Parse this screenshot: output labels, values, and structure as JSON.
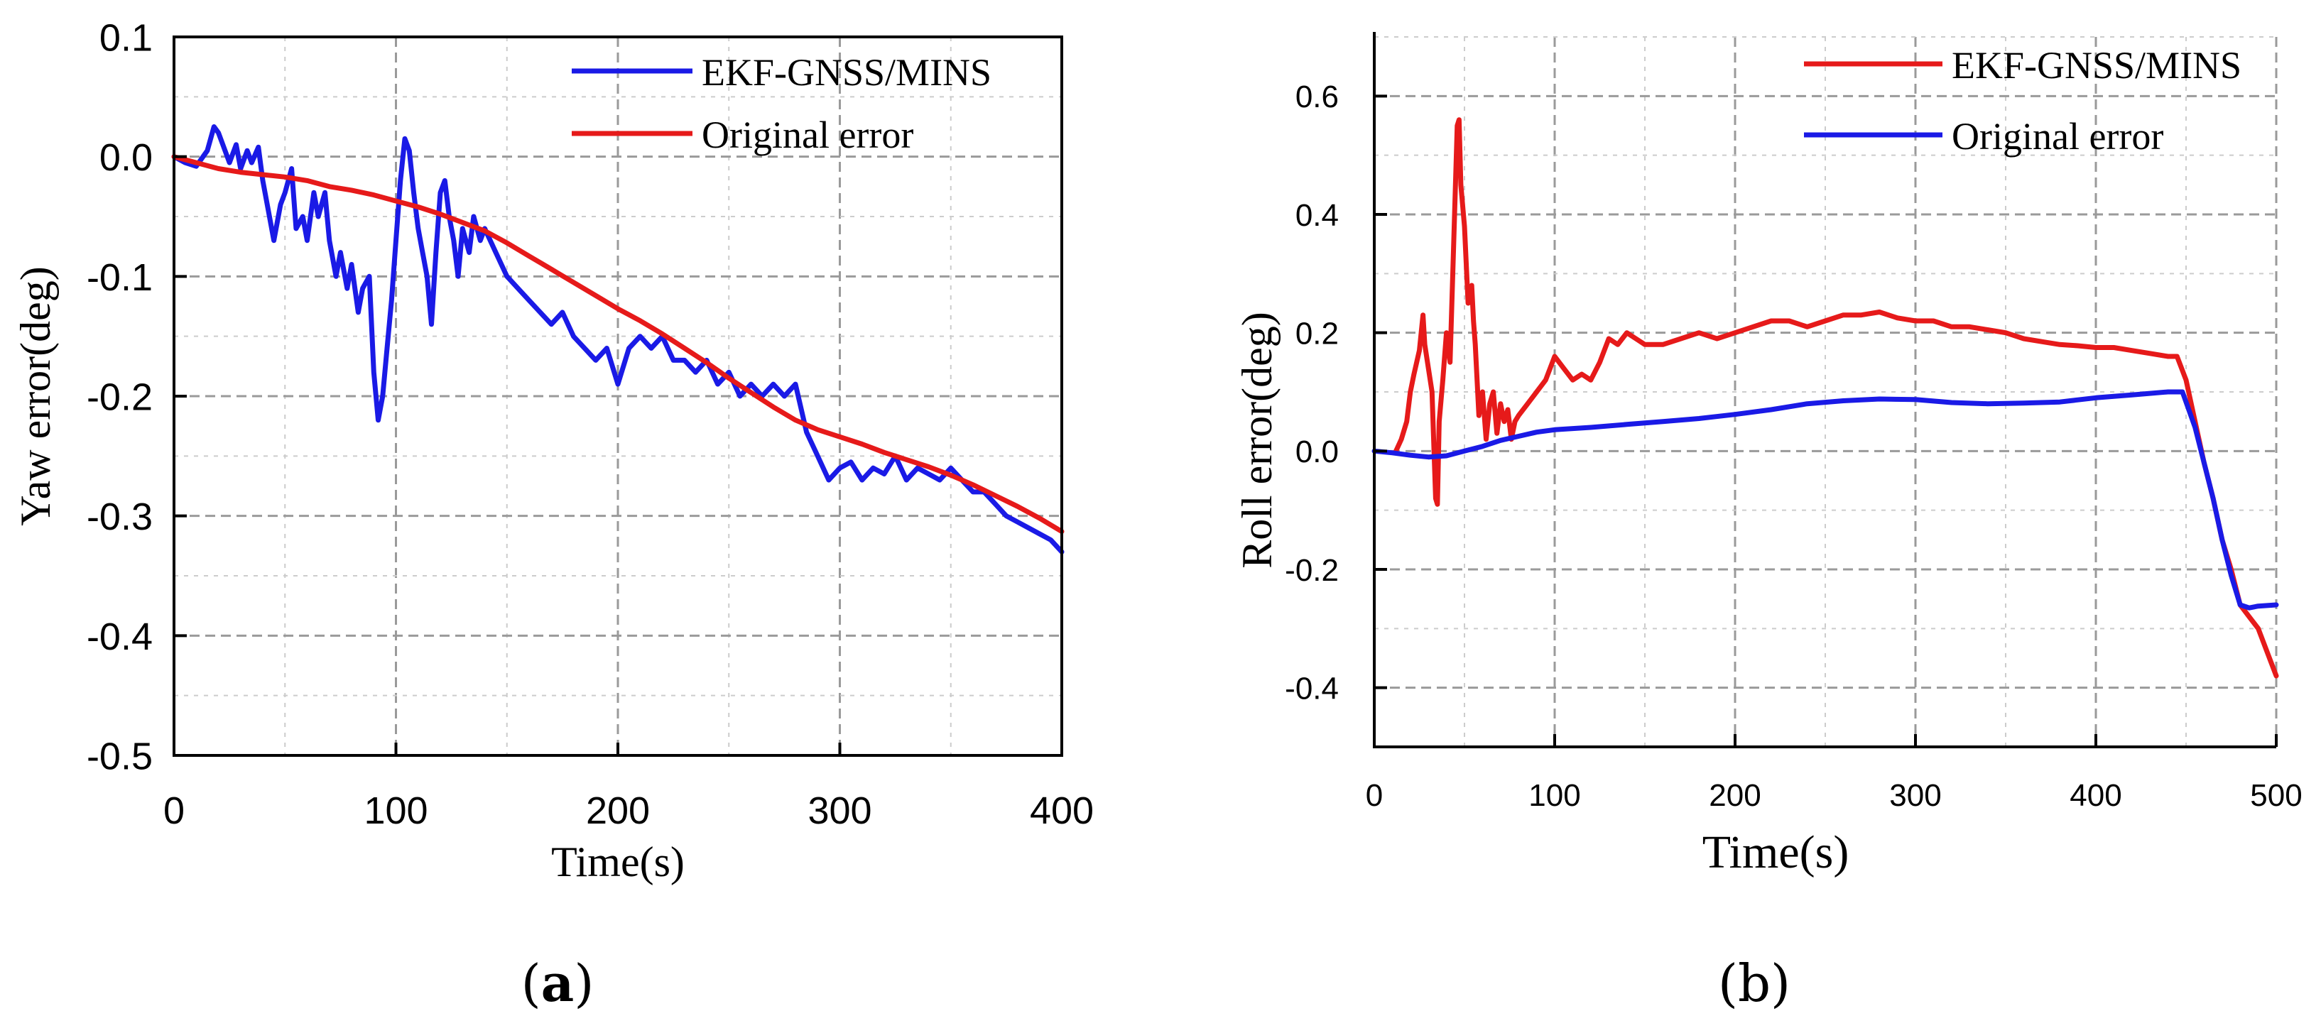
{
  "chart_data": [
    {
      "id": "a",
      "type": "line",
      "caption": "(a)",
      "caption_letter": "a",
      "xlabel": "Time(s)",
      "ylabel": "Yaw error(deg)",
      "xlim": [
        0,
        400
      ],
      "ylim": [
        -0.5,
        0.1
      ],
      "xticks": [
        0,
        100,
        200,
        300,
        400
      ],
      "xtick_labels": [
        "0",
        "100",
        "200",
        "300",
        "400"
      ],
      "yticks": [
        -0.5,
        -0.4,
        -0.3,
        -0.2,
        -0.1,
        0.0,
        0.1
      ],
      "ytick_labels": [
        "-0.5",
        "-0.4",
        "-0.3",
        "-0.2",
        "-0.1",
        "0.0",
        "0.1"
      ],
      "grid": true,
      "legend_position": "top-right",
      "series": [
        {
          "name": "EKF-GNSS/MINS",
          "color": "#1a1ae6",
          "x": [
            0,
            5,
            10,
            15,
            18,
            20,
            22,
            25,
            28,
            30,
            33,
            35,
            38,
            40,
            43,
            45,
            48,
            50,
            53,
            55,
            58,
            60,
            63,
            65,
            68,
            70,
            73,
            75,
            78,
            80,
            83,
            85,
            88,
            90,
            92,
            94,
            96,
            98,
            100,
            102,
            104,
            106,
            108,
            110,
            112,
            114,
            116,
            118,
            120,
            122,
            124,
            126,
            128,
            130,
            133,
            135,
            138,
            140,
            145,
            150,
            155,
            160,
            165,
            170,
            175,
            180,
            185,
            190,
            195,
            200,
            205,
            210,
            215,
            220,
            225,
            230,
            235,
            240,
            245,
            250,
            255,
            260,
            265,
            270,
            275,
            280,
            285,
            290,
            295,
            300,
            305,
            310,
            315,
            320,
            325,
            330,
            335,
            340,
            345,
            350,
            355,
            360,
            365,
            370,
            375,
            380,
            385,
            390,
            395,
            400
          ],
          "y": [
            0.0,
            -0.005,
            -0.008,
            0.005,
            0.025,
            0.02,
            0.01,
            -0.005,
            0.01,
            -0.01,
            0.005,
            -0.005,
            0.008,
            -0.02,
            -0.05,
            -0.07,
            -0.04,
            -0.03,
            -0.01,
            -0.06,
            -0.05,
            -0.07,
            -0.03,
            -0.05,
            -0.03,
            -0.07,
            -0.1,
            -0.08,
            -0.11,
            -0.09,
            -0.13,
            -0.11,
            -0.1,
            -0.18,
            -0.22,
            -0.2,
            -0.16,
            -0.12,
            -0.07,
            -0.02,
            0.015,
            0.005,
            -0.03,
            -0.06,
            -0.08,
            -0.1,
            -0.14,
            -0.08,
            -0.03,
            -0.02,
            -0.05,
            -0.07,
            -0.1,
            -0.06,
            -0.08,
            -0.05,
            -0.07,
            -0.06,
            -0.08,
            -0.1,
            -0.11,
            -0.12,
            -0.13,
            -0.14,
            -0.13,
            -0.15,
            -0.16,
            -0.17,
            -0.16,
            -0.19,
            -0.16,
            -0.15,
            -0.16,
            -0.15,
            -0.17,
            -0.17,
            -0.18,
            -0.17,
            -0.19,
            -0.18,
            -0.2,
            -0.19,
            -0.2,
            -0.19,
            -0.2,
            -0.19,
            -0.23,
            -0.25,
            -0.27,
            -0.26,
            -0.255,
            -0.27,
            -0.26,
            -0.265,
            -0.25,
            -0.27,
            -0.26,
            -0.265,
            -0.27,
            -0.26,
            -0.27,
            -0.28,
            -0.28,
            -0.29,
            -0.3,
            -0.305,
            -0.31,
            -0.315,
            -0.32,
            -0.33
          ]
        },
        {
          "name": "Original error",
          "color": "#e61a1a",
          "x": [
            0,
            10,
            20,
            30,
            40,
            50,
            60,
            70,
            80,
            90,
            100,
            110,
            120,
            130,
            140,
            150,
            160,
            170,
            180,
            190,
            200,
            210,
            220,
            230,
            240,
            250,
            260,
            270,
            280,
            290,
            300,
            310,
            320,
            330,
            340,
            350,
            360,
            370,
            380,
            390,
            400
          ],
          "y": [
            0.0,
            -0.005,
            -0.01,
            -0.013,
            -0.015,
            -0.017,
            -0.02,
            -0.025,
            -0.028,
            -0.032,
            -0.037,
            -0.042,
            -0.048,
            -0.055,
            -0.062,
            -0.072,
            -0.083,
            -0.094,
            -0.105,
            -0.116,
            -0.127,
            -0.137,
            -0.148,
            -0.16,
            -0.172,
            -0.185,
            -0.197,
            -0.209,
            -0.22,
            -0.228,
            -0.234,
            -0.24,
            -0.247,
            -0.253,
            -0.259,
            -0.266,
            -0.274,
            -0.283,
            -0.292,
            -0.302,
            -0.313
          ]
        }
      ]
    },
    {
      "id": "b",
      "type": "line",
      "caption": "(b)",
      "caption_letter": "b",
      "xlabel": "Time(s)",
      "ylabel": "Roll error(deg)",
      "xlim": [
        0,
        500
      ],
      "ylim": [
        -0.5,
        0.7
      ],
      "xticks": [
        0,
        100,
        200,
        300,
        400,
        500
      ],
      "xtick_labels": [
        "0",
        "100",
        "200",
        "300",
        "400",
        "500"
      ],
      "yticks": [
        -0.4,
        -0.2,
        0.0,
        0.2,
        0.4,
        0.6
      ],
      "ytick_labels": [
        "-0.4",
        "-0.2",
        "0.0",
        "0.2",
        "0.4",
        "0.6"
      ],
      "grid": true,
      "legend_position": "top-right",
      "series": [
        {
          "name": "EKF-GNSS/MINS",
          "color": "#e61a1a",
          "x": [
            12,
            15,
            18,
            20,
            22,
            25,
            27,
            28,
            30,
            32,
            34,
            35,
            36,
            38,
            40,
            42,
            44,
            46,
            47,
            48,
            50,
            52,
            54,
            55,
            56,
            58,
            60,
            62,
            64,
            66,
            68,
            70,
            72,
            74,
            76,
            78,
            80,
            85,
            90,
            95,
            100,
            105,
            110,
            115,
            120,
            125,
            130,
            135,
            140,
            145,
            150,
            160,
            170,
            180,
            190,
            200,
            210,
            220,
            230,
            240,
            250,
            260,
            270,
            280,
            290,
            300,
            310,
            320,
            330,
            340,
            350,
            360,
            370,
            380,
            390,
            400,
            410,
            420,
            430,
            440,
            445,
            450,
            455,
            460,
            465,
            470,
            475,
            480,
            485,
            490,
            495,
            500
          ],
          "y": [
            0.0,
            0.02,
            0.05,
            0.1,
            0.13,
            0.17,
            0.23,
            0.18,
            0.14,
            0.1,
            -0.08,
            -0.09,
            0.05,
            0.12,
            0.2,
            0.15,
            0.35,
            0.55,
            0.56,
            0.45,
            0.38,
            0.25,
            0.28,
            0.22,
            0.18,
            0.06,
            0.1,
            0.02,
            0.08,
            0.1,
            0.03,
            0.08,
            0.05,
            0.07,
            0.02,
            0.05,
            0.06,
            0.08,
            0.1,
            0.12,
            0.16,
            0.14,
            0.12,
            0.13,
            0.12,
            0.15,
            0.19,
            0.18,
            0.2,
            0.19,
            0.18,
            0.18,
            0.19,
            0.2,
            0.19,
            0.2,
            0.21,
            0.22,
            0.22,
            0.21,
            0.22,
            0.23,
            0.23,
            0.235,
            0.225,
            0.22,
            0.22,
            0.21,
            0.21,
            0.205,
            0.2,
            0.19,
            0.185,
            0.18,
            0.178,
            0.175,
            0.175,
            0.17,
            0.165,
            0.16,
            0.16,
            0.12,
            0.05,
            -0.02,
            -0.08,
            -0.15,
            -0.2,
            -0.26,
            -0.28,
            -0.3,
            -0.34,
            -0.38
          ]
        },
        {
          "name": "Original error",
          "color": "#1a1ae6",
          "x": [
            0,
            10,
            20,
            30,
            40,
            50,
            60,
            70,
            80,
            90,
            100,
            120,
            140,
            160,
            180,
            200,
            220,
            240,
            260,
            280,
            300,
            320,
            340,
            360,
            380,
            400,
            420,
            440,
            448,
            455,
            460,
            465,
            470,
            475,
            480,
            485,
            490,
            500
          ],
          "y": [
            0.0,
            -0.003,
            -0.007,
            -0.01,
            -0.008,
            0.0,
            0.008,
            0.018,
            0.025,
            0.032,
            0.036,
            0.04,
            0.045,
            0.05,
            0.055,
            0.062,
            0.07,
            0.08,
            0.085,
            0.088,
            0.087,
            0.082,
            0.08,
            0.081,
            0.083,
            0.09,
            0.095,
            0.1,
            0.1,
            0.04,
            -0.02,
            -0.08,
            -0.15,
            -0.21,
            -0.26,
            -0.265,
            -0.262,
            -0.26
          ]
        }
      ]
    }
  ]
}
